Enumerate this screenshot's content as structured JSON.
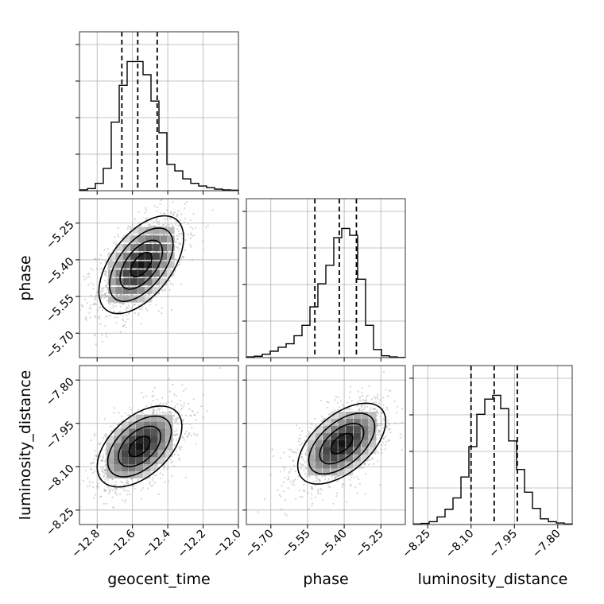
{
  "chart_data": {
    "type": "corner",
    "parameters": [
      {
        "name": "geocent_time",
        "range": [
          -12.9,
          -12.0
        ],
        "ticks": [
          "−12.8",
          "−12.6",
          "−12.4",
          "−12.2",
          "−12.0"
        ],
        "tick_values": [
          -12.8,
          -12.6,
          -12.4,
          -12.2,
          -12.0
        ],
        "quantiles": [
          -12.66,
          -12.57,
          -12.46
        ],
        "histogram": {
          "edges_start": -12.9,
          "bin_width": 0.045,
          "counts": [
            0.3,
            0.8,
            2.8,
            8.5,
            26,
            40,
            49,
            49,
            44,
            34,
            22,
            10,
            7.5,
            4.5,
            2.8,
            1.8,
            1.2,
            0.6,
            0.3,
            0.2
          ]
        }
      },
      {
        "name": "phase",
        "range": [
          -5.8,
          -5.15
        ],
        "ticks": [
          "−5.70",
          "−5.55",
          "−5.40",
          "−5.25"
        ],
        "tick_values": [
          -5.7,
          -5.55,
          -5.4,
          -5.25
        ],
        "quantiles": [
          -5.52,
          -5.42,
          -5.35
        ],
        "histogram": {
          "edges_start": -5.8,
          "bin_width": 0.0325,
          "counts": [
            0.3,
            0.6,
            1.5,
            2.8,
            4.5,
            6,
            9.5,
            14,
            22,
            32,
            40,
            52,
            56,
            53,
            34,
            14,
            3.5,
            0.8,
            0.3,
            0.1
          ]
        }
      },
      {
        "name": "luminosity_distance",
        "range": [
          -8.3,
          -7.75
        ],
        "ticks": [
          "−8.25",
          "−8.10",
          "−7.95",
          "−7.80"
        ],
        "tick_values": [
          -8.25,
          -8.1,
          -7.95,
          -7.8
        ],
        "quantiles": [
          -8.1,
          -8.02,
          -7.94
        ],
        "histogram": {
          "edges_start": -8.3,
          "bin_width": 0.0275,
          "counts": [
            0.3,
            0.6,
            1.5,
            4,
            8,
            14,
            25,
            41,
            58,
            66,
            68,
            61,
            44,
            29,
            17,
            8.5,
            3,
            1.5,
            0.8,
            0.3
          ]
        }
      }
    ],
    "pairs": [
      {
        "x": "geocent_time",
        "y": "phase",
        "mean": [
          -12.55,
          -5.42
        ],
        "std": [
          0.12,
          0.1
        ],
        "corr": 0.55
      },
      {
        "x": "geocent_time",
        "y": "luminosity_distance",
        "mean": [
          -12.56,
          -8.03
        ],
        "std": [
          0.12,
          0.07
        ],
        "corr": 0.5
      },
      {
        "x": "phase",
        "y": "luminosity_distance",
        "mean": [
          -5.41,
          -8.02
        ],
        "std": [
          0.09,
          0.07
        ],
        "corr": 0.55
      }
    ],
    "grid": true
  }
}
